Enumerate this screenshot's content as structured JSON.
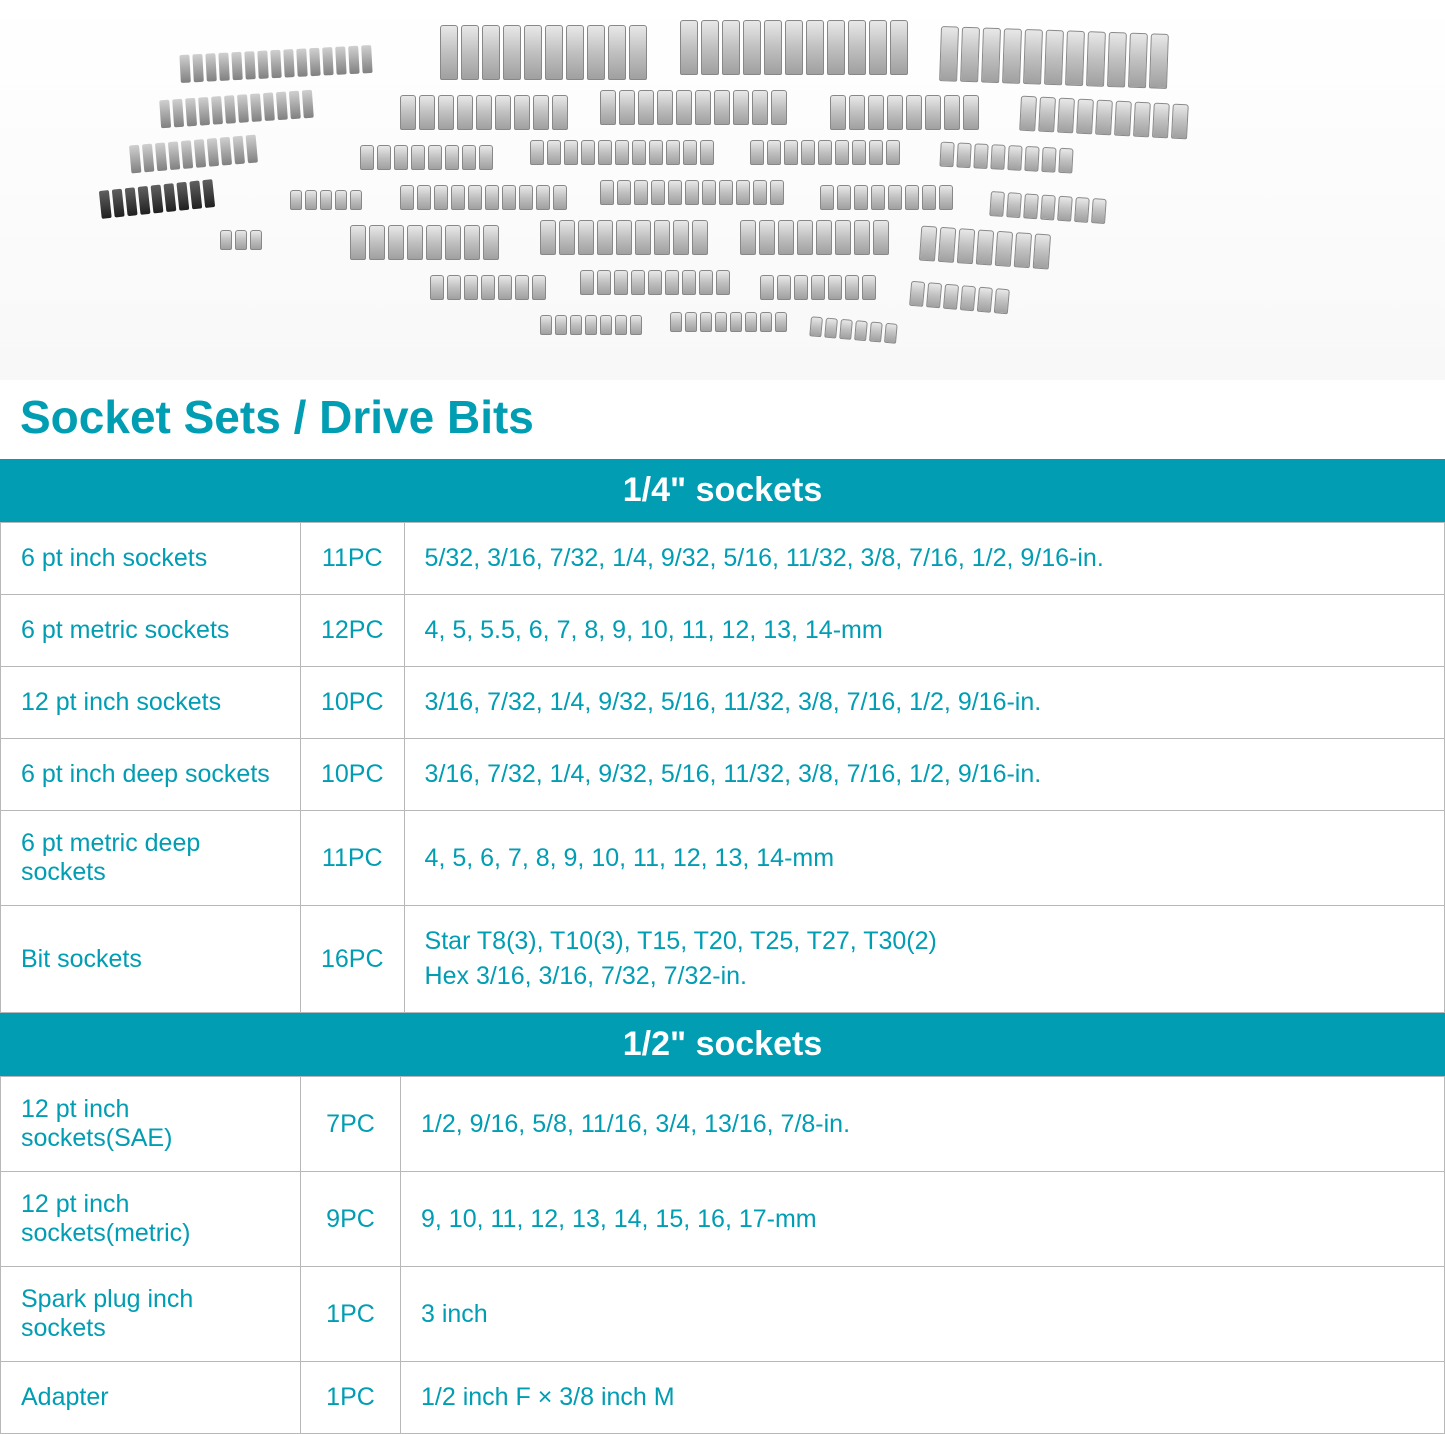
{
  "title": "Socket Sets / Drive Bits",
  "colors": {
    "accent": "#009db3",
    "text": "#009db3",
    "border": "#b8b8b8",
    "header_bg": "#009db3",
    "header_text": "#ffffff",
    "background": "#ffffff"
  },
  "typography": {
    "title_fontsize": 46,
    "header_fontsize": 34,
    "cell_fontsize": 25,
    "font_family": "Arial, Helvetica, sans-serif"
  },
  "layout": {
    "col_name_width": 300,
    "col_qty_width": 100,
    "cell_padding": "18px 20px"
  },
  "sections": [
    {
      "header": "1/4\" sockets",
      "rows": [
        {
          "name": "6 pt inch sockets",
          "qty": "11PC",
          "sizes": "5/32, 3/16, 7/32, 1/4, 9/32, 5/16, 11/32, 3/8, 7/16, 1/2, 9/16-in."
        },
        {
          "name": "6 pt metric sockets",
          "qty": "12PC",
          "sizes": "4, 5, 5.5, 6, 7, 8, 9, 10, 11, 12, 13, 14-mm"
        },
        {
          "name": "12 pt inch sockets",
          "qty": "10PC",
          "sizes": "3/16, 7/32, 1/4, 9/32, 5/16, 11/32, 3/8, 7/16, 1/2, 9/16-in."
        },
        {
          "name": "6 pt inch deep sockets",
          "qty": "10PC",
          "sizes": "3/16, 7/32, 1/4, 9/32, 5/16, 11/32, 3/8, 7/16, 1/2, 9/16-in."
        },
        {
          "name": "6 pt metric deep sockets",
          "qty": "11PC",
          "sizes": "4, 5, 6, 7, 8, 9, 10, 11, 12, 13, 14-mm"
        },
        {
          "name": "Bit sockets",
          "qty": "16PC",
          "sizes": "Star T8(3), T10(3), T15, T20, T25, T27, T30(2)\nHex 3/16, 3/16, 7/32, 7/32-in."
        }
      ]
    },
    {
      "header": "1/2\" sockets",
      "rows": [
        {
          "name": "12 pt inch sockets(SAE)",
          "qty": "7PC",
          "sizes": "1/2, 9/16, 5/8, 11/16, 3/4, 13/16, 7/8-in."
        },
        {
          "name": "12 pt inch sockets(metric)",
          "qty": "9PC",
          "sizes": "9, 10, 11, 12, 13, 14, 15, 16, 17-mm"
        },
        {
          "name": "Spark plug inch sockets",
          "qty": "1PC",
          "sizes": "3 inch"
        },
        {
          "name": "Adapter",
          "qty": "1PC",
          "sizes": "1/2 inch F × 3/8 inch M"
        }
      ]
    }
  ]
}
